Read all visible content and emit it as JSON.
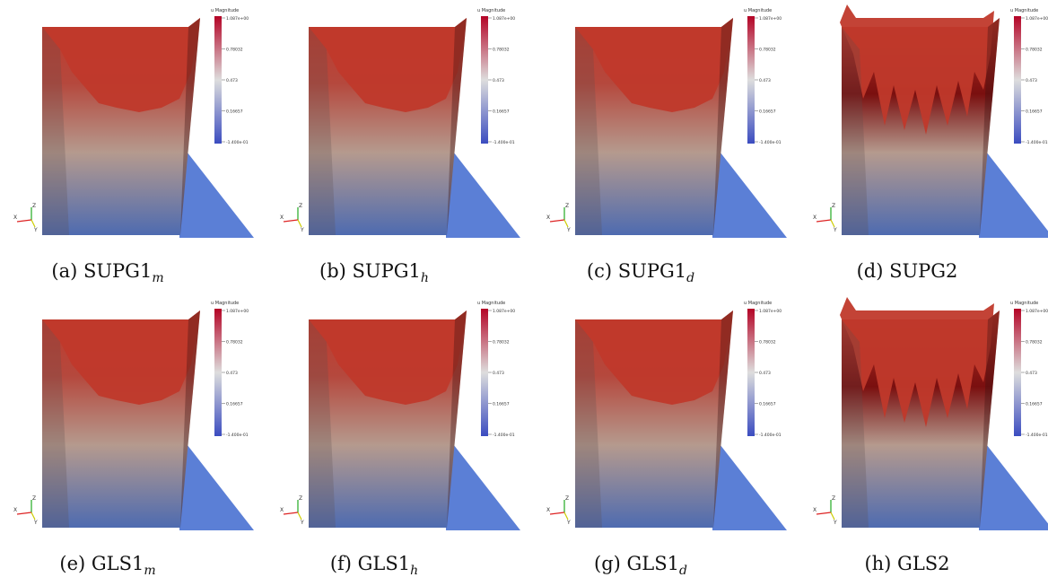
{
  "colorbar": {
    "title": "u Magnitude",
    "ticks": [
      "1.087e+00",
      "0.78032",
      "0.473",
      "0.16657",
      "-1.400e-01"
    ]
  },
  "axis_labels": {
    "x": "X",
    "y": "Y",
    "z": "Z"
  },
  "colors": {
    "top_red": "#c0392b",
    "dark_red": "#7a0f0f",
    "mid": "#b59a8e",
    "bottom_blue": "#4e6bb0",
    "floor_blue": "#5b7fd6"
  },
  "panels": [
    {
      "caption": "(a) SUPG1",
      "sub": "m",
      "variant": "smooth"
    },
    {
      "caption": "(b) SUPG1",
      "sub": "h",
      "variant": "smooth"
    },
    {
      "caption": "(c) SUPG1",
      "sub": "d",
      "variant": "smooth"
    },
    {
      "caption": "(d) SUPG2",
      "sub": "",
      "variant": "spiky"
    },
    {
      "caption": "(e) GLS1",
      "sub": "m",
      "variant": "smooth"
    },
    {
      "caption": "(f) GLS1",
      "sub": "h",
      "variant": "smooth"
    },
    {
      "caption": "(g) GLS1",
      "sub": "d",
      "variant": "smooth"
    },
    {
      "caption": "(h) GLS2",
      "sub": "",
      "variant": "spiky"
    }
  ]
}
